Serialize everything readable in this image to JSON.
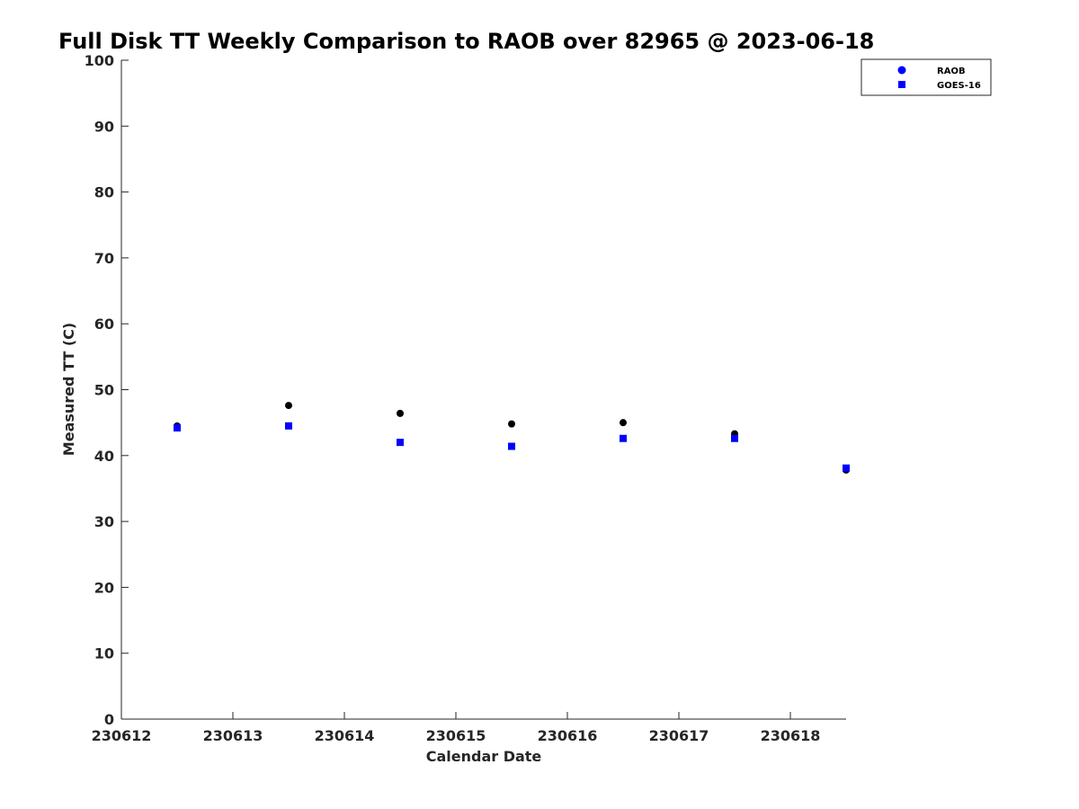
{
  "chart_data": {
    "type": "scatter",
    "title": "Full Disk TT Weekly Comparison to RAOB over 82965 @ 2023-06-18",
    "xlabel": "Calendar Date",
    "ylabel": "Measured TT (C)",
    "xlim": [
      0,
      6.5
    ],
    "ylim": [
      0,
      100
    ],
    "x_ticks": [
      {
        "value": 0,
        "label": "230612"
      },
      {
        "value": 1,
        "label": "230613"
      },
      {
        "value": 2,
        "label": "230614"
      },
      {
        "value": 3,
        "label": "230615"
      },
      {
        "value": 4,
        "label": "230616"
      },
      {
        "value": 5,
        "label": "230617"
      },
      {
        "value": 6,
        "label": "230618"
      }
    ],
    "y_ticks": [
      "0",
      "10",
      "20",
      "30",
      "40",
      "50",
      "60",
      "70",
      "80",
      "90",
      "100"
    ],
    "grid": false,
    "legend_position": "top-right",
    "series": [
      {
        "name": "RAOB",
        "marker": "circle",
        "color": "#000000",
        "legend_color": "#0000ff",
        "x": [
          0.5,
          1.5,
          2.5,
          3.5,
          4.5,
          5.5,
          6.5
        ],
        "y": [
          44.5,
          47.6,
          46.4,
          44.8,
          45.0,
          43.3,
          37.8
        ]
      },
      {
        "name": "GOES-16",
        "marker": "square",
        "color": "#0000ff",
        "legend_color": "#0000ff",
        "x": [
          0.5,
          1.5,
          2.5,
          3.5,
          4.5,
          5.5,
          6.5
        ],
        "y": [
          44.2,
          44.5,
          42.0,
          41.4,
          42.6,
          42.6,
          38.1
        ]
      }
    ]
  }
}
